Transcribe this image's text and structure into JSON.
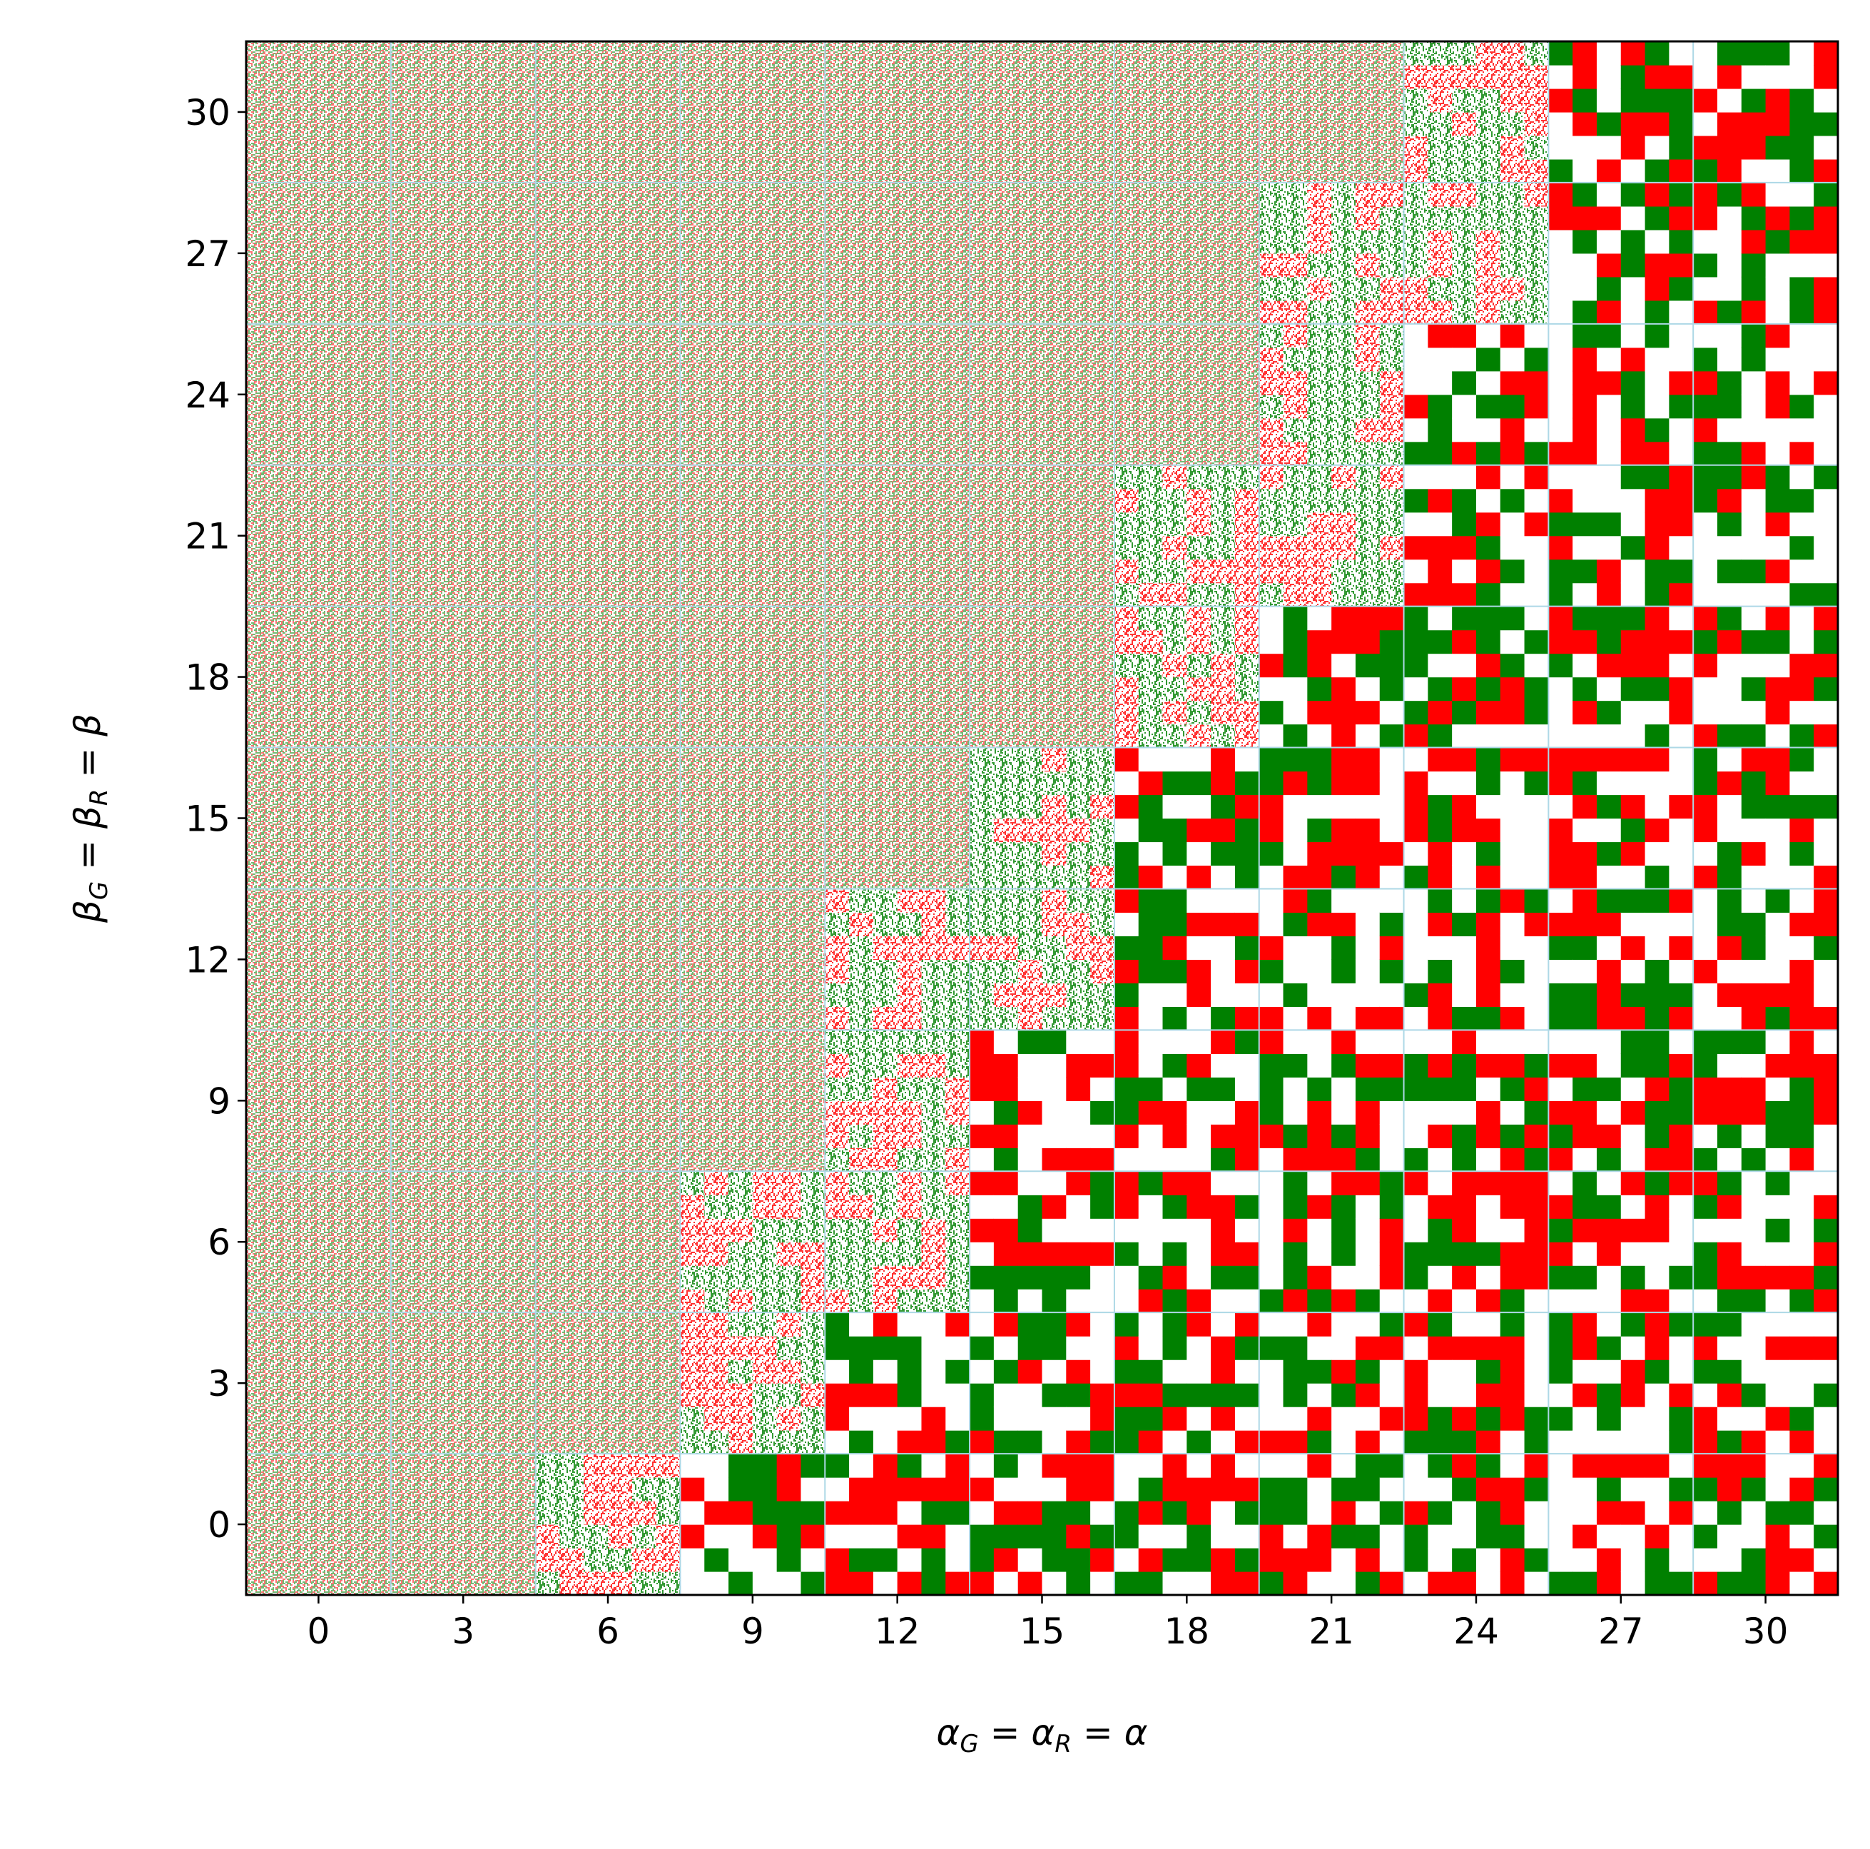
{
  "chart_data": {
    "type": "heatmap",
    "xlabel": [
      "α",
      "G",
      " = α",
      "R",
      " = α"
    ],
    "ylabel": [
      "β",
      "G",
      " = β",
      "R",
      " = β"
    ],
    "xlim": [
      -1.5,
      31.5
    ],
    "ylim": [
      -1.5,
      31.5
    ],
    "xticks": [
      0,
      3,
      6,
      9,
      12,
      15,
      18,
      21,
      24,
      27,
      30
    ],
    "yticks": [
      0,
      3,
      6,
      9,
      12,
      15,
      18,
      21,
      24,
      27,
      30
    ],
    "grid_lines": [
      1.5,
      4.5,
      7.5,
      10.5,
      13.5,
      16.5,
      19.5,
      22.5,
      25.5,
      28.5
    ],
    "grid_color": "#add8e6",
    "colors": [
      "#ff0000",
      "#008000"
    ]
  }
}
